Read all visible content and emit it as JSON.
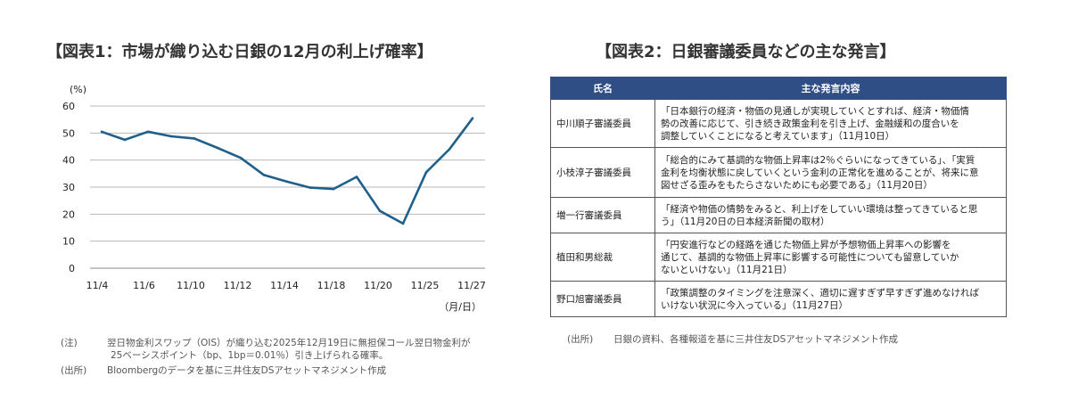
{
  "left_title": "【図表1：市場が織り込む日銀の12月の利上げ確率】",
  "right_title": "【図表2：日銀審議委員などの主な発言】",
  "chart_data": {
    "type": "line",
    "title": "【図表1：市場が織り込む日銀の12月の利上げ確率】",
    "ylabel": "(%)",
    "xlabel": "（月/日）",
    "ylim": [
      0,
      60
    ],
    "yticks": [
      0,
      10,
      20,
      30,
      40,
      50,
      60
    ],
    "x_tick_labels": [
      "11/4",
      "11/6",
      "11/10",
      "11/12",
      "11/14",
      "11/18",
      "11/20",
      "11/25",
      "11/27"
    ],
    "grid": true,
    "color": "#1f5f8b",
    "series": [
      {
        "name": "",
        "values": [
          50.5,
          47.5,
          50.5,
          48.8,
          48.0,
          44.5,
          40.8,
          34.5,
          32.0,
          29.8,
          29.3,
          33.8,
          21.2,
          16.5,
          35.5,
          44.0,
          55.5
        ]
      }
    ]
  },
  "notes": {
    "note1_label": "(注)",
    "note1_line1": "翌日物金利スワップ（OIS）が織り込む2025年12月19日に無担保コール翌日物金利が",
    "note1_line2": "25ベーシスポイント（bp、1bp＝0.01％）引き上げられる確率。",
    "note2_label": "(出所)",
    "note2_text": "Bloombergのデータを基に三井住友DSアセットマネジメント作成"
  },
  "table": {
    "headers": [
      "氏名",
      "主な発言内容"
    ],
    "rows": [
      {
        "name": "中川順子審議委員",
        "quote": "「日本銀行の経済・物価の見通しが実現していくとすれば、経済・物価情\n勢の改善に応じて、引き続き政策金利を引き上げ、金融緩和の度合いを\n調整していくことになると考えています」（11月10日）"
      },
      {
        "name": "小枝淳子審議委員",
        "quote": "「総合的にみて基調的な物価上昇率は2％ぐらいになってきている」、「実質\n金利を均衡状態に戻していくという金利の正常化を進めることが、将来に意\n図せざる歪みをもたらさないためにも必要である」（11月20日）"
      },
      {
        "name": "増一行審議委員",
        "quote": "「経済や物価の情勢をみると、利上げをしていい環境は整ってきていると思\nう」（11月20日の日本経済新聞の取材）"
      },
      {
        "name": "植田和男総裁",
        "quote": "「円安進行などの経路を通じた物価上昇が予想物価上昇率への影響を\n通じて、基調的な物価上昇率に影響する可能性についても留意していか\nないといけない」（11月21日）"
      },
      {
        "name": "野口旭審議委員",
        "quote": "「政策調整のタイミングを注意深く、適切に遅すぎず早すぎず進めなければ\nいけない状況に今入っている」（11月27日）"
      }
    ],
    "source_label": "(出所)",
    "source_text": "日銀の資料、各種報道を基に三井住友DSアセットマネジメント作成"
  }
}
